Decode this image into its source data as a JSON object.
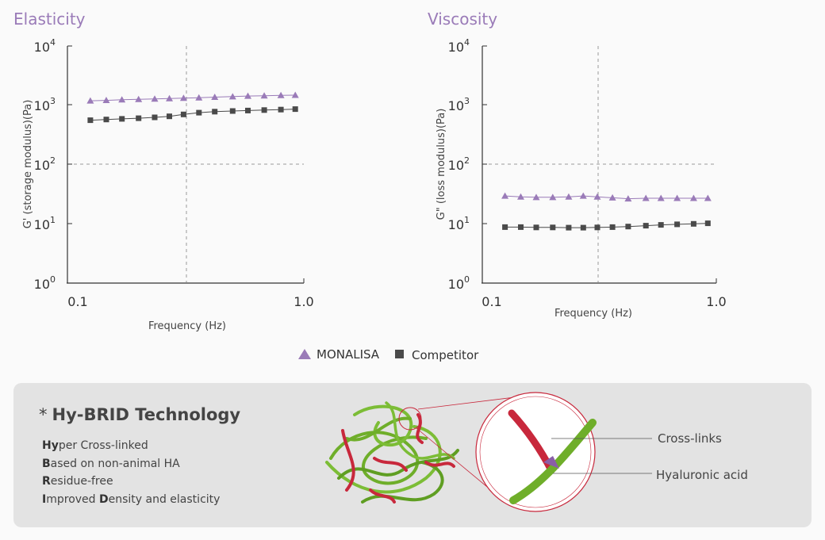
{
  "chart_data": [
    {
      "type": "scatter",
      "title": "Elasticity",
      "xlabel": "Frequency (Hz)",
      "ylabel": "G' (storage modulus)(Pa)",
      "xscale": "log",
      "yscale": "log",
      "xlim": [
        0.1,
        1.0
      ],
      "ylim": [
        1,
        10000
      ],
      "xticks": [
        "0.1",
        "1.0"
      ],
      "yticks": [
        {
          "base": "10",
          "exp": "0"
        },
        {
          "base": "10",
          "exp": "1"
        },
        {
          "base": "10",
          "exp": "2"
        },
        {
          "base": "10",
          "exp": "3"
        },
        {
          "base": "10",
          "exp": "4"
        }
      ],
      "reference_lines": {
        "x": 0.32,
        "y": 100
      },
      "series": [
        {
          "name": "MONALISA",
          "marker": "triangle",
          "color": "#9a7bb8",
          "x": [
            0.125,
            0.146,
            0.17,
            0.2,
            0.234,
            0.27,
            0.31,
            0.36,
            0.42,
            0.5,
            0.58,
            0.68,
            0.8,
            0.92
          ],
          "y": [
            1190,
            1210,
            1240,
            1260,
            1280,
            1300,
            1320,
            1340,
            1370,
            1400,
            1430,
            1450,
            1470,
            1480
          ]
        },
        {
          "name": "Competitor",
          "marker": "square",
          "color": "#4a4a4a",
          "x": [
            0.125,
            0.146,
            0.17,
            0.2,
            0.234,
            0.27,
            0.31,
            0.36,
            0.42,
            0.5,
            0.58,
            0.68,
            0.8,
            0.92
          ],
          "y": [
            560,
            575,
            590,
            605,
            625,
            650,
            700,
            750,
            780,
            800,
            815,
            830,
            845,
            860
          ]
        }
      ]
    },
    {
      "type": "scatter",
      "title": "Viscosity",
      "xlabel": "Frequency (Hz)",
      "ylabel": "G\" (loss modulus)(Pa)",
      "xscale": "log",
      "yscale": "log",
      "xlim": [
        0.1,
        1.0
      ],
      "ylim": [
        1,
        10000
      ],
      "xticks": [
        "0.1",
        "1.0"
      ],
      "yticks": [
        {
          "base": "10",
          "exp": "0"
        },
        {
          "base": "10",
          "exp": "1"
        },
        {
          "base": "10",
          "exp": "2"
        },
        {
          "base": "10",
          "exp": "3"
        },
        {
          "base": "10",
          "exp": "4"
        }
      ],
      "reference_lines": {
        "x": 0.31,
        "y": 100
      },
      "series": [
        {
          "name": "MONALISA",
          "marker": "triangle",
          "color": "#9a7bb8",
          "x": [
            0.125,
            0.146,
            0.17,
            0.2,
            0.234,
            0.27,
            0.31,
            0.36,
            0.42,
            0.5,
            0.58,
            0.68,
            0.8,
            0.92
          ],
          "y": [
            29.5,
            28.5,
            28,
            28,
            28.5,
            29.5,
            28.5,
            27.5,
            26.5,
            27,
            27,
            27,
            27,
            27
          ]
        },
        {
          "name": "Competitor",
          "marker": "square",
          "color": "#4a4a4a",
          "x": [
            0.125,
            0.146,
            0.17,
            0.2,
            0.234,
            0.27,
            0.31,
            0.36,
            0.42,
            0.5,
            0.58,
            0.68,
            0.8,
            0.92
          ],
          "y": [
            8.8,
            8.8,
            8.7,
            8.7,
            8.6,
            8.6,
            8.7,
            8.8,
            9.0,
            9.3,
            9.6,
            9.8,
            10,
            10.2
          ]
        }
      ]
    }
  ],
  "legend": {
    "items": [
      {
        "label": "MONALISA",
        "marker": "triangle",
        "color": "#9a7bb8"
      },
      {
        "label": "Competitor",
        "marker": "square",
        "color": "#4a4a4a"
      }
    ]
  },
  "technology": {
    "star": "*",
    "title": "Hy-BRID Technology",
    "items": [
      {
        "bold": "Hy",
        "rest": "per Cross-linked"
      },
      {
        "bold": "B",
        "rest": "ased on non-animal HA"
      },
      {
        "bold": "R",
        "rest": "esidue-free"
      },
      {
        "bold": "I",
        "rest": "mproved ",
        "bold2": "D",
        "rest2": "ensity and elasticity"
      }
    ],
    "illustration_labels": {
      "crosslinks": "Cross-links",
      "hyaluronic": "Hyaluronic acid"
    },
    "colors": {
      "strand": "#6fae2a",
      "crosslink": "#c8283c",
      "box": "#e3e3e3"
    }
  }
}
